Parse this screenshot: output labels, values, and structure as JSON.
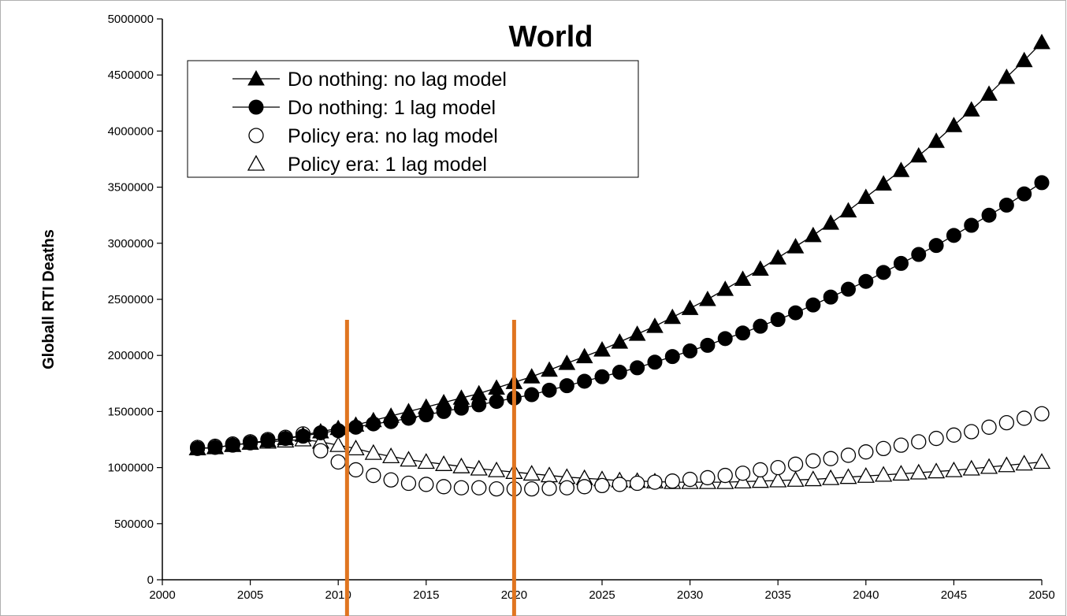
{
  "chart_data": {
    "type": "scatter",
    "title": "World",
    "xlabel": "",
    "ylabel": "Globall RTI Deaths",
    "xlim": [
      2000,
      2050
    ],
    "ylim": [
      0,
      5000000
    ],
    "xticks": [
      2000,
      2005,
      2010,
      2015,
      2020,
      2025,
      2030,
      2035,
      2040,
      2045,
      2050
    ],
    "yticks": [
      0,
      500000,
      1000000,
      1500000,
      2000000,
      2500000,
      3000000,
      3500000,
      4000000,
      4500000,
      5000000
    ],
    "grid": false,
    "legend_position": "top-left",
    "x": [
      2002,
      2003,
      2004,
      2005,
      2006,
      2007,
      2008,
      2009,
      2010,
      2011,
      2012,
      2013,
      2014,
      2015,
      2016,
      2017,
      2018,
      2019,
      2020,
      2021,
      2022,
      2023,
      2024,
      2025,
      2026,
      2027,
      2028,
      2029,
      2030,
      2031,
      2032,
      2033,
      2034,
      2035,
      2036,
      2037,
      2038,
      2039,
      2040,
      2041,
      2042,
      2043,
      2044,
      2045,
      2046,
      2047,
      2048,
      2049,
      2050
    ],
    "series": [
      {
        "name": "Do nothing: no lag model",
        "marker": "filled-triangle",
        "line": true,
        "values": [
          1170000,
          1180000,
          1200000,
          1220000,
          1240000,
          1260000,
          1290000,
          1320000,
          1350000,
          1380000,
          1420000,
          1460000,
          1500000,
          1540000,
          1580000,
          1620000,
          1660000,
          1710000,
          1760000,
          1810000,
          1870000,
          1930000,
          1990000,
          2050000,
          2120000,
          2190000,
          2260000,
          2340000,
          2420000,
          2500000,
          2590000,
          2680000,
          2770000,
          2870000,
          2970000,
          3070000,
          3180000,
          3290000,
          3410000,
          3530000,
          3650000,
          3780000,
          3910000,
          4050000,
          4190000,
          4330000,
          4480000,
          4630000,
          4790000
        ]
      },
      {
        "name": "Do nothing: 1 lag model",
        "marker": "filled-circle",
        "line": true,
        "values": [
          1170000,
          1180000,
          1200000,
          1220000,
          1240000,
          1260000,
          1280000,
          1310000,
          1330000,
          1360000,
          1390000,
          1410000,
          1440000,
          1470000,
          1500000,
          1530000,
          1560000,
          1590000,
          1620000,
          1650000,
          1690000,
          1730000,
          1770000,
          1810000,
          1850000,
          1890000,
          1940000,
          1990000,
          2040000,
          2090000,
          2150000,
          2200000,
          2260000,
          2320000,
          2380000,
          2450000,
          2520000,
          2590000,
          2660000,
          2740000,
          2820000,
          2900000,
          2980000,
          3070000,
          3160000,
          3250000,
          3340000,
          3440000,
          3540000
        ]
      },
      {
        "name": "Policy era: no lag model",
        "marker": "open-circle",
        "line": false,
        "values": [
          1180000,
          1190000,
          1210000,
          1230000,
          1250000,
          1270000,
          1300000,
          1150000,
          1050000,
          980000,
          930000,
          890000,
          860000,
          850000,
          830000,
          820000,
          820000,
          810000,
          810000,
          810000,
          815000,
          820000,
          830000,
          840000,
          850000,
          860000,
          870000,
          880000,
          895000,
          910000,
          930000,
          950000,
          980000,
          1000000,
          1030000,
          1060000,
          1080000,
          1110000,
          1140000,
          1170000,
          1200000,
          1230000,
          1260000,
          1290000,
          1320000,
          1360000,
          1400000,
          1440000,
          1480000
        ]
      },
      {
        "name": "Policy era: 1 lag model",
        "marker": "open-triangle",
        "line": true,
        "values": [
          1170000,
          1180000,
          1200000,
          1220000,
          1230000,
          1240000,
          1250000,
          1230000,
          1200000,
          1170000,
          1130000,
          1100000,
          1070000,
          1050000,
          1030000,
          1010000,
          990000,
          975000,
          960000,
          945000,
          930000,
          915000,
          905000,
          895000,
          885000,
          880000,
          875000,
          870000,
          870000,
          870000,
          870000,
          875000,
          880000,
          885000,
          890000,
          895000,
          905000,
          915000,
          925000,
          935000,
          945000,
          955000,
          965000,
          975000,
          990000,
          1005000,
          1020000,
          1035000,
          1050000
        ]
      }
    ],
    "reference_lines_x": [
      2010.5,
      2020.0
    ],
    "reference_line_color": "#e07520"
  }
}
